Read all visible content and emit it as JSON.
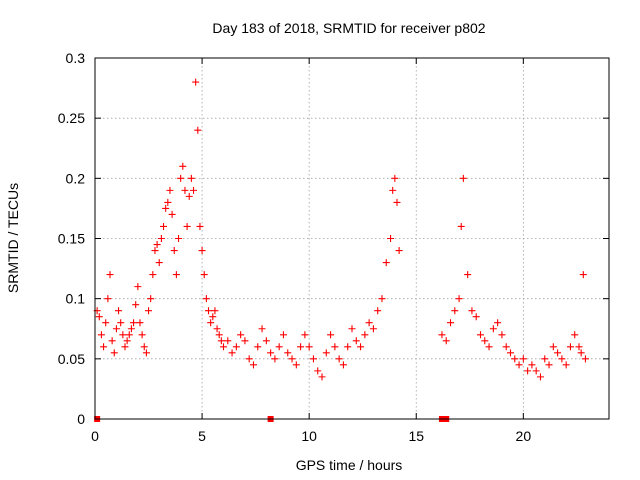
{
  "chart_data": {
    "type": "scatter",
    "title": "Day 183 of 2018, SRMTID for receiver p802",
    "xlabel": "GPS time / hours",
    "ylabel": "SRMTID / TECUs",
    "xlim": [
      0,
      24
    ],
    "ylim": [
      0,
      0.3
    ],
    "xticks": [
      0,
      5,
      10,
      15,
      20
    ],
    "xtick_labels": [
      "0",
      "5",
      "10",
      "15",
      "20"
    ],
    "yticks": [
      0,
      0.05,
      0.1,
      0.15,
      0.2,
      0.25,
      0.3
    ],
    "ytick_labels": [
      "0",
      "0.05",
      "0.1",
      "0.15",
      "0.2",
      "0.25",
      "0.3"
    ],
    "grid": true,
    "series_color": "#ff0000",
    "series": [
      {
        "name": "SRMTID",
        "marker": "+",
        "x": [
          0.1,
          0.2,
          0.3,
          0.4,
          0.5,
          0.6,
          0.7,
          0.8,
          0.9,
          1.0,
          1.1,
          1.2,
          1.3,
          1.4,
          1.5,
          1.6,
          1.7,
          1.8,
          1.9,
          2.0,
          2.1,
          2.2,
          2.3,
          2.4,
          2.5,
          2.6,
          2.7,
          2.8,
          2.9,
          3.0,
          3.1,
          3.2,
          3.3,
          3.4,
          3.5,
          3.6,
          3.7,
          3.8,
          3.9,
          4.0,
          4.1,
          4.2,
          4.3,
          4.4,
          4.5,
          4.6,
          4.7,
          4.8,
          4.9,
          5.0,
          5.1,
          5.2,
          5.3,
          5.4,
          5.5,
          5.6,
          5.7,
          5.8,
          5.9,
          6.0,
          6.2,
          6.4,
          6.6,
          6.8,
          7.0,
          7.2,
          7.4,
          7.6,
          7.8,
          8.0,
          8.2,
          8.4,
          8.6,
          8.8,
          9.0,
          9.2,
          9.4,
          9.6,
          9.8,
          10.0,
          10.2,
          10.4,
          10.6,
          10.8,
          11.0,
          11.2,
          11.4,
          11.6,
          11.8,
          12.0,
          12.2,
          12.4,
          12.6,
          12.8,
          13.0,
          13.2,
          13.4,
          13.6,
          13.8,
          13.9,
          14.0,
          14.1,
          14.2,
          16.2,
          16.4,
          16.6,
          16.8,
          17.0,
          17.1,
          17.2,
          17.4,
          17.6,
          17.8,
          18.0,
          18.2,
          18.4,
          18.6,
          18.8,
          19.0,
          19.2,
          19.4,
          19.6,
          19.8,
          20.0,
          20.2,
          20.4,
          20.6,
          20.8,
          21.0,
          21.2,
          21.4,
          21.6,
          21.8,
          22.0,
          22.2,
          22.4,
          22.6,
          22.7,
          22.8,
          22.9
        ],
        "y": [
          0.09,
          0.085,
          0.07,
          0.06,
          0.08,
          0.1,
          0.12,
          0.065,
          0.055,
          0.075,
          0.09,
          0.08,
          0.07,
          0.06,
          0.065,
          0.07,
          0.075,
          0.08,
          0.095,
          0.11,
          0.08,
          0.07,
          0.06,
          0.055,
          0.09,
          0.1,
          0.12,
          0.14,
          0.145,
          0.13,
          0.15,
          0.16,
          0.175,
          0.18,
          0.19,
          0.17,
          0.14,
          0.12,
          0.15,
          0.2,
          0.21,
          0.19,
          0.16,
          0.185,
          0.2,
          0.19,
          0.28,
          0.24,
          0.16,
          0.14,
          0.12,
          0.1,
          0.09,
          0.08,
          0.085,
          0.09,
          0.075,
          0.07,
          0.065,
          0.06,
          0.065,
          0.055,
          0.06,
          0.07,
          0.065,
          0.05,
          0.045,
          0.06,
          0.075,
          0.065,
          0.055,
          0.05,
          0.06,
          0.07,
          0.055,
          0.05,
          0.045,
          0.06,
          0.07,
          0.06,
          0.05,
          0.04,
          0.035,
          0.055,
          0.07,
          0.06,
          0.05,
          0.045,
          0.06,
          0.075,
          0.065,
          0.06,
          0.07,
          0.08,
          0.075,
          0.09,
          0.1,
          0.13,
          0.15,
          0.19,
          0.2,
          0.18,
          0.14,
          0.07,
          0.065,
          0.08,
          0.09,
          0.1,
          0.16,
          0.2,
          0.12,
          0.09,
          0.085,
          0.07,
          0.065,
          0.06,
          0.075,
          0.08,
          0.07,
          0.06,
          0.055,
          0.05,
          0.045,
          0.05,
          0.04,
          0.045,
          0.04,
          0.035,
          0.05,
          0.045,
          0.06,
          0.055,
          0.05,
          0.045,
          0.06,
          0.07,
          0.06,
          0.055,
          0.12,
          0.05
        ]
      }
    ],
    "baseline_markers": {
      "x": [
        0.1,
        8.2,
        16.2,
        16.4
      ],
      "y": [
        0,
        0,
        0,
        0
      ]
    }
  }
}
